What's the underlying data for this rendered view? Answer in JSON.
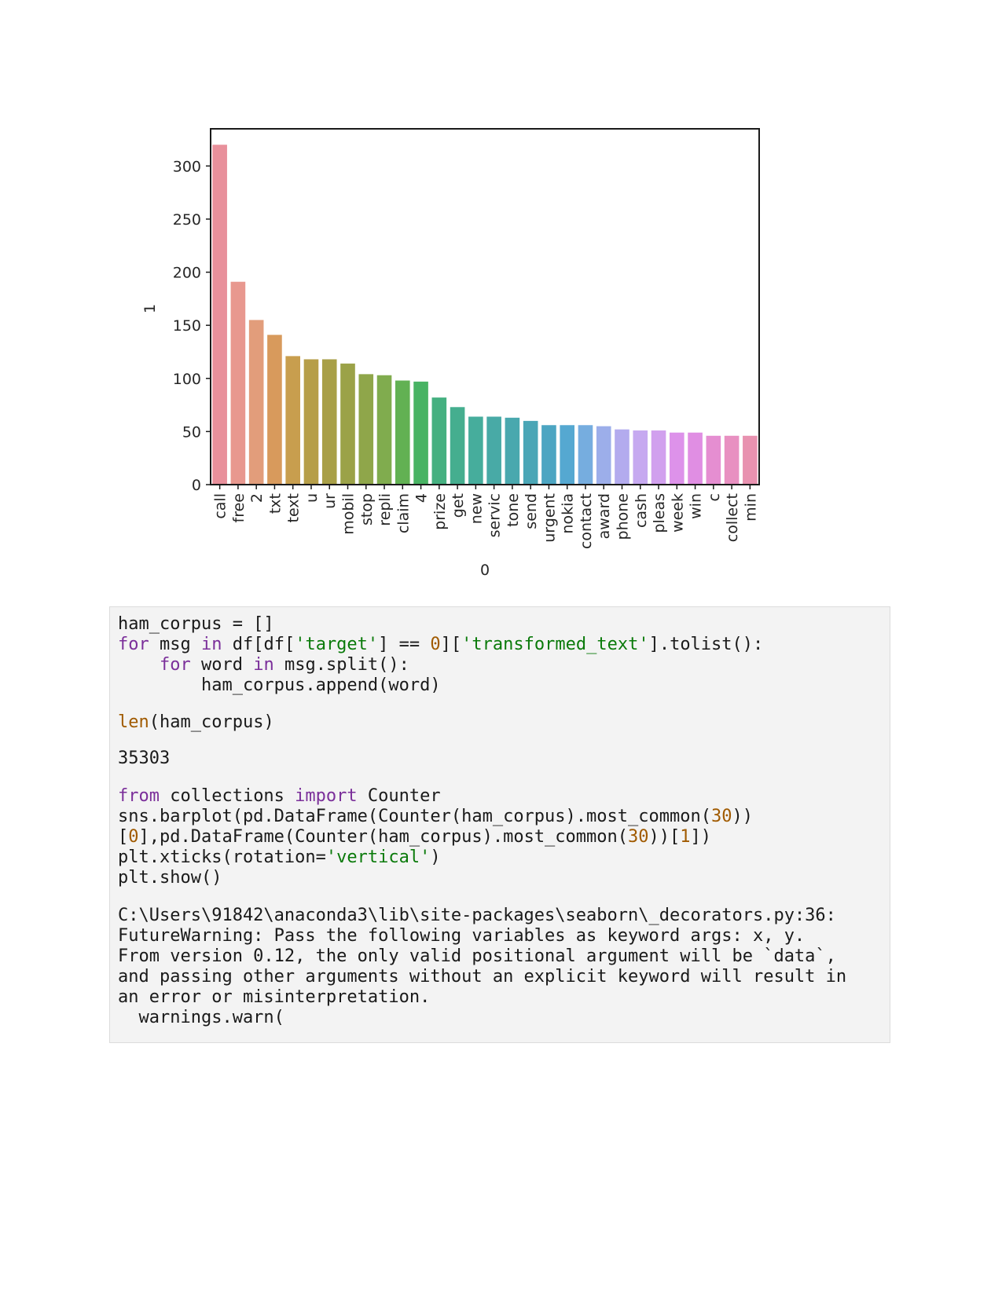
{
  "chart_data": {
    "type": "bar",
    "xlabel": "0",
    "ylabel": "1",
    "ylim": [
      0,
      335
    ],
    "yticks": [
      "0",
      "50",
      "100",
      "150",
      "200",
      "250",
      "300"
    ],
    "categories": [
      "call",
      "free",
      "2",
      "txt",
      "text",
      "u",
      "ur",
      "mobil",
      "stop",
      "repli",
      "claim",
      "4",
      "prize",
      "get",
      "new",
      "servic",
      "tone",
      "send",
      "urgent",
      "nokia",
      "contact",
      "award",
      "phone",
      "cash",
      "pleas",
      "week",
      "win",
      "c",
      "collect",
      "min"
    ],
    "values": [
      320,
      191,
      155,
      141,
      121,
      118,
      118,
      114,
      104,
      103,
      98,
      97,
      82,
      73,
      64,
      64,
      63,
      60,
      56,
      56,
      56,
      55,
      52,
      51,
      51,
      49,
      49,
      46,
      46,
      46
    ],
    "colors": [
      "#e8909b",
      "#e8988f",
      "#e29d7b",
      "#d89a5c",
      "#c89e4e",
      "#b69e48",
      "#a89f47",
      "#9ba248",
      "#8fa64a",
      "#80ac4e",
      "#62b153",
      "#48b363",
      "#45b080",
      "#45ae8f",
      "#46ad9c",
      "#48aaa6",
      "#49a8ae",
      "#4aa6b6",
      "#4ca5c2",
      "#55a8d1",
      "#76addf",
      "#9caeea",
      "#b3abee",
      "#c6a9f0",
      "#d1a0ee",
      "#dd92ea",
      "#e08ee3",
      "#e58ed1",
      "#e890c1",
      "#e892b0"
    ]
  },
  "code": {
    "line1": "ham_corpus = []",
    "line2": {
      "kw1": "for",
      "a": " msg ",
      "kw2": "in",
      "b": " df[df[",
      "s1": "'target'",
      "c": "] == ",
      "n1": "0",
      "d": "][",
      "s2": "'transformed_text'",
      "e": "].tolist():"
    },
    "line3": {
      "indent": "    ",
      "kw1": "for",
      "a": " word ",
      "kw2": "in",
      "b": " msg.split():"
    },
    "line4": "        ham_corpus.append(word)",
    "line5": {
      "fn": "len",
      "a": "(ham_corpus)"
    },
    "output1": "35303",
    "line6": {
      "kw1": "from",
      "a": " collections ",
      "kw2": "import",
      "b": " Counter"
    },
    "line7": {
      "a": "sns.barplot(pd.DataFrame(Counter(ham_corpus).most_common(",
      "n1": "30",
      "b": "))"
    },
    "line8": {
      "a": "[",
      "n1": "0",
      "b": "],pd.DataFrame(Counter(ham_corpus).most_common(",
      "n2": "30",
      "c": "))[",
      "n3": "1",
      "d": "])"
    },
    "line9": {
      "a": "plt.xticks(rotation=",
      "s1": "'vertical'",
      "b": ")"
    },
    "line10": "plt.show()",
    "warn1": "C:\\Users\\91842\\anaconda3\\lib\\site-packages\\seaborn\\_decorators.py:36:",
    "warn2": "FutureWarning: Pass the following variables as keyword args: x, y.",
    "warn3": "From version 0.12, the only valid positional argument will be `data`,",
    "warn4": "and passing other arguments without an explicit keyword will result in",
    "warn5": "an error or misinterpretation.",
    "warn6": "  warnings.warn("
  }
}
